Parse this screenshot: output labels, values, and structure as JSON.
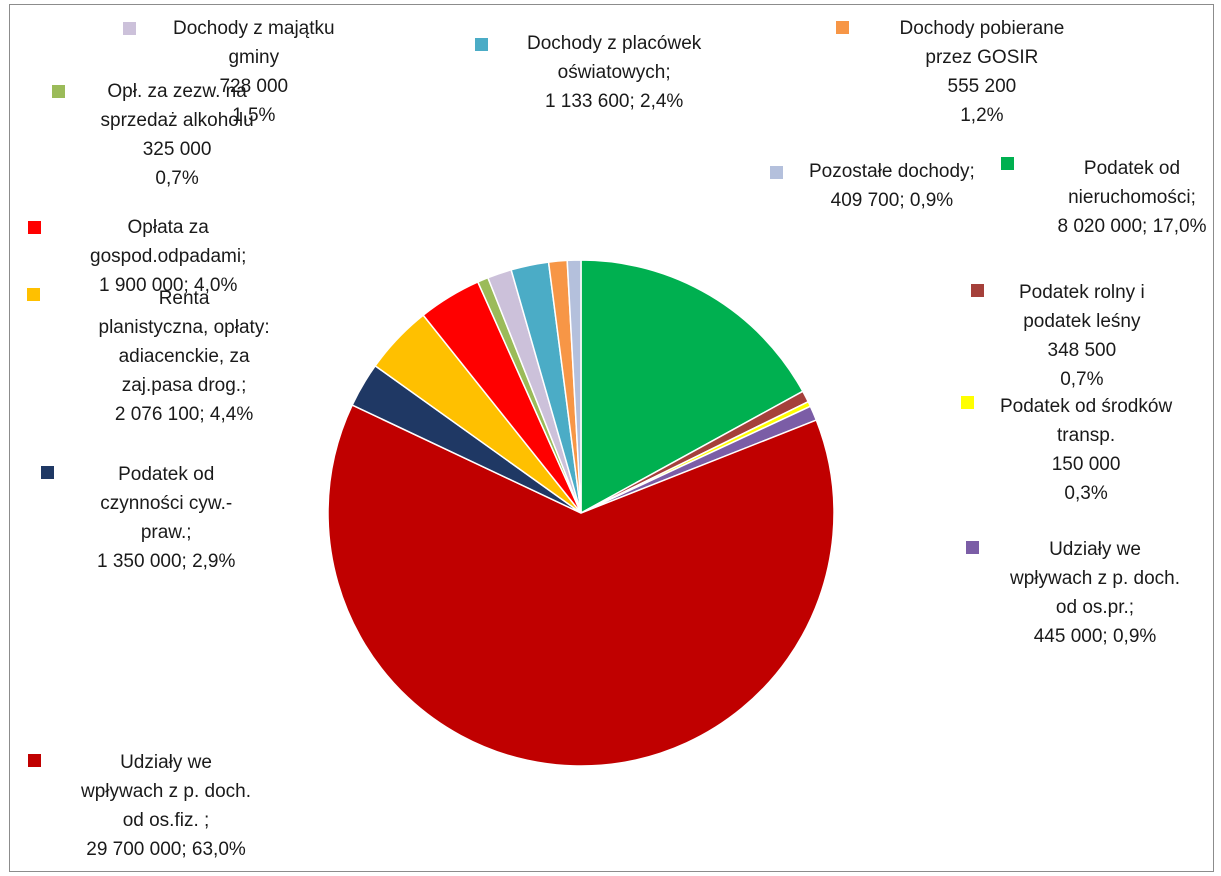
{
  "chart_data": {
    "type": "pie",
    "slices": [
      {
        "label": "Podatek od nieruchomości",
        "value": 8020000,
        "percent": "17,0%",
        "color": "#00b050",
        "lines": [
          "Podatek od",
          "nieruchomości;",
          "8 020 000; 17,0%"
        ]
      },
      {
        "label": "Podatek rolny i podatek leśny",
        "value": 348500,
        "percent": "0,7%",
        "color": "#a5403a",
        "lines": [
          "Podatek rolny i",
          "podatek leśny",
          "348 500",
          "0,7%"
        ]
      },
      {
        "label": "Podatek od środków transp.",
        "value": 150000,
        "percent": "0,3%",
        "color": "#ffff00",
        "lines": [
          "Podatek od środków",
          "transp.",
          "150 000",
          "0,3%"
        ]
      },
      {
        "label": "Udziały we wpływach z p. doch. od os.pr.",
        "value": 445000,
        "percent": "0,9%",
        "color": "#7b5da6",
        "lines": [
          "Udziały we",
          "wpływach z p. doch.",
          "od os.pr.;",
          "445 000; 0,9%"
        ]
      },
      {
        "label": "Udziały we wpływach z p. doch. od os.fiz.",
        "value": 29700000,
        "percent": "63,0%",
        "color": "#c00000",
        "lines": [
          "Udziały we",
          "wpływach z p. doch.",
          "od os.fiz. ;",
          "29 700 000; 63,0%"
        ]
      },
      {
        "label": "Podatek od czynności cyw.-praw.",
        "value": 1350000,
        "percent": "2,9%",
        "color": "#1f3864",
        "lines": [
          "Podatek od",
          "czynności cyw.-",
          "praw.;",
          "1 350 000; 2,9%"
        ]
      },
      {
        "label": "Renta planistyczna, opłaty: adiacenckie, za zaj.pasa drog.",
        "value": 2076100,
        "percent": "4,4%",
        "color": "#ffc000",
        "lines": [
          "Renta",
          "planistyczna, opłaty:",
          "adiacenckie, za",
          "zaj.pasa drog.;",
          "2 076 100; 4,4%"
        ]
      },
      {
        "label": "Opłata za gospod.odpadami",
        "value": 1900000,
        "percent": "4,0%",
        "color": "#ff0000",
        "lines": [
          "Opłata za",
          "gospod.odpadami;",
          "1 900 000; 4,0%"
        ]
      },
      {
        "label": "Opł. za zezw. na sprzedaż alkoholu",
        "value": 325000,
        "percent": "0,7%",
        "color": "#9bbb59",
        "lines": [
          "Opł. za zezw. na",
          "sprzedaż alkoholu",
          "325 000",
          "0,7%"
        ]
      },
      {
        "label": "Dochody z majątku gminy",
        "value": 728000,
        "percent": "1,5%",
        "color": "#ccc1da",
        "lines": [
          "Dochody z majątku",
          "gminy",
          "728 000",
          "1,5%"
        ]
      },
      {
        "label": "Dochody z placówek oświatowych",
        "value": 1133600,
        "percent": "2,4%",
        "color": "#4bacc6",
        "lines": [
          "Dochody z placówek",
          "oświatowych;",
          "1 133 600; 2,4%"
        ]
      },
      {
        "label": "Dochody pobierane przez GOSIR",
        "value": 555200,
        "percent": "1,2%",
        "color": "#f79646",
        "lines": [
          "Dochody pobierane",
          "przez GOSIR",
          "555 200",
          "1,2%"
        ]
      },
      {
        "label": "Pozostałe dochody",
        "value": 409700,
        "percent": "0,9%",
        "color": "#b4c0dc",
        "lines": [
          "Pozostałe dochody;",
          "409 700; 0,9%"
        ]
      }
    ]
  }
}
